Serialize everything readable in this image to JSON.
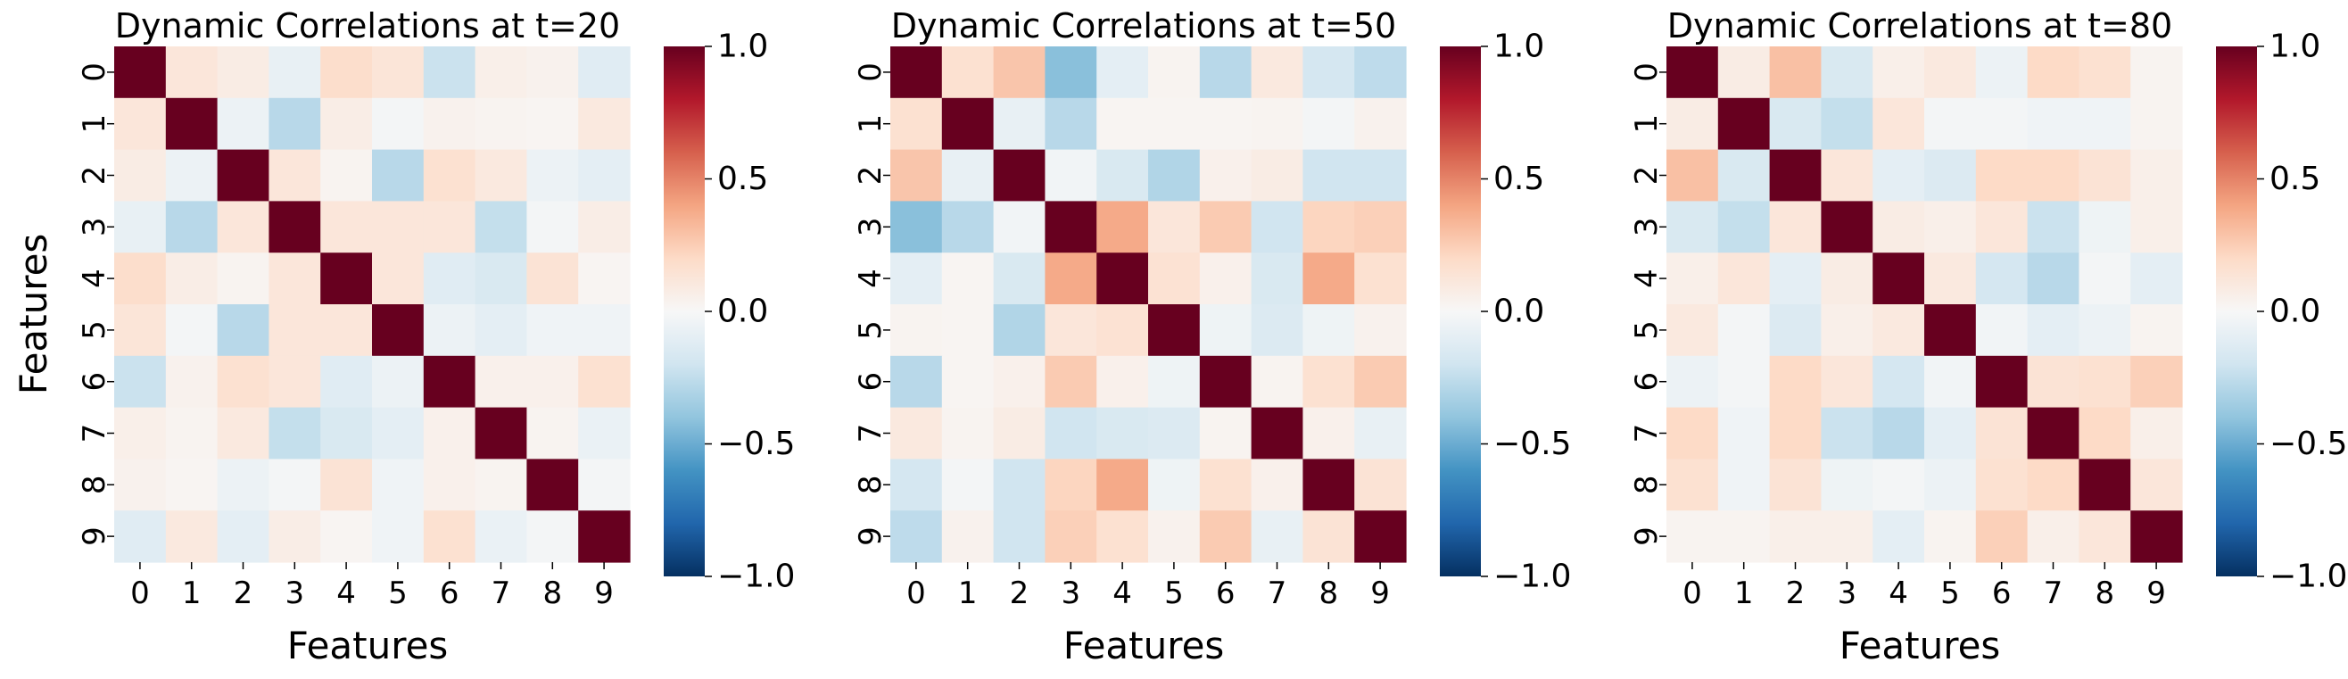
{
  "chart_data": [
    {
      "type": "heatmap",
      "title": "Dynamic Correlations at t=20",
      "xlabel": "Features",
      "ylabel": "Features",
      "x_categories": [
        "0",
        "1",
        "2",
        "3",
        "4",
        "5",
        "6",
        "7",
        "8",
        "9"
      ],
      "y_categories": [
        "0",
        "1",
        "2",
        "3",
        "4",
        "5",
        "6",
        "7",
        "8",
        "9"
      ],
      "values": [
        [
          1.0,
          0.12,
          0.08,
          -0.08,
          0.18,
          0.13,
          -0.22,
          0.06,
          0.04,
          -0.12
        ],
        [
          0.12,
          1.0,
          -0.06,
          -0.28,
          0.07,
          -0.02,
          0.04,
          0.03,
          0.02,
          0.1
        ],
        [
          0.08,
          -0.06,
          1.0,
          0.12,
          0.03,
          -0.28,
          0.16,
          0.1,
          -0.06,
          -0.1
        ],
        [
          -0.08,
          -0.28,
          0.12,
          1.0,
          0.12,
          0.12,
          0.12,
          -0.24,
          -0.02,
          0.07
        ],
        [
          0.18,
          0.07,
          0.03,
          0.12,
          1.0,
          0.12,
          -0.12,
          -0.16,
          0.14,
          0.02
        ],
        [
          0.13,
          -0.02,
          -0.28,
          0.12,
          0.12,
          1.0,
          -0.06,
          -0.1,
          -0.04,
          -0.04
        ],
        [
          -0.22,
          0.04,
          0.16,
          0.12,
          -0.12,
          -0.06,
          1.0,
          0.05,
          0.05,
          0.16
        ],
        [
          0.06,
          0.03,
          0.1,
          -0.24,
          -0.16,
          -0.1,
          0.05,
          1.0,
          0.03,
          -0.07
        ],
        [
          0.04,
          0.02,
          -0.06,
          -0.02,
          0.14,
          -0.04,
          0.05,
          0.03,
          1.0,
          -0.02
        ],
        [
          -0.12,
          0.1,
          -0.1,
          0.07,
          0.02,
          -0.04,
          0.16,
          -0.07,
          -0.02,
          1.0
        ]
      ],
      "vmin": -1.0,
      "vmax": 1.0,
      "colormap": "RdBu_r",
      "colorbar_ticks": [
        "1.0",
        "0.5",
        "0.0",
        "−0.5",
        "−1.0"
      ],
      "colorbar_tick_values": [
        1.0,
        0.5,
        0.0,
        -0.5,
        -1.0
      ]
    },
    {
      "type": "heatmap",
      "title": "Dynamic Correlations at t=50",
      "xlabel": "Features",
      "ylabel": "",
      "x_categories": [
        "0",
        "1",
        "2",
        "3",
        "4",
        "5",
        "6",
        "7",
        "8",
        "9"
      ],
      "y_categories": [
        "0",
        "1",
        "2",
        "3",
        "4",
        "5",
        "6",
        "7",
        "8",
        "9"
      ],
      "values": [
        [
          1.0,
          0.16,
          0.28,
          -0.42,
          -0.1,
          0.03,
          -0.28,
          0.1,
          -0.18,
          -0.26
        ],
        [
          0.16,
          1.0,
          -0.08,
          -0.28,
          0.02,
          0.02,
          0.02,
          0.03,
          -0.02,
          0.04
        ],
        [
          0.28,
          -0.08,
          1.0,
          -0.03,
          -0.16,
          -0.3,
          0.05,
          0.08,
          -0.2,
          -0.2
        ],
        [
          -0.42,
          -0.28,
          -0.03,
          1.0,
          0.38,
          0.12,
          0.26,
          -0.2,
          0.22,
          0.24
        ],
        [
          -0.1,
          0.02,
          -0.16,
          0.38,
          1.0,
          0.15,
          0.05,
          -0.16,
          0.38,
          0.16
        ],
        [
          0.03,
          0.02,
          -0.3,
          0.12,
          0.15,
          1.0,
          -0.05,
          -0.14,
          -0.05,
          0.04
        ],
        [
          -0.28,
          0.02,
          0.05,
          0.26,
          0.05,
          -0.05,
          1.0,
          0.03,
          0.16,
          0.26
        ],
        [
          0.1,
          0.03,
          0.08,
          -0.2,
          -0.16,
          -0.14,
          0.03,
          1.0,
          0.05,
          -0.08
        ],
        [
          -0.18,
          -0.02,
          -0.2,
          0.22,
          0.38,
          -0.05,
          0.16,
          0.05,
          1.0,
          0.14
        ],
        [
          -0.26,
          0.04,
          -0.2,
          0.24,
          0.16,
          0.04,
          0.26,
          -0.08,
          0.14,
          1.0
        ]
      ],
      "vmin": -1.0,
      "vmax": 1.0,
      "colormap": "RdBu_r",
      "colorbar_ticks": [
        "1.0",
        "0.5",
        "0.0",
        "−0.5",
        "−1.0"
      ],
      "colorbar_tick_values": [
        1.0,
        0.5,
        0.0,
        -0.5,
        -1.0
      ]
    },
    {
      "type": "heatmap",
      "title": "Dynamic Correlations at t=80",
      "xlabel": "Features",
      "ylabel": "",
      "x_categories": [
        "0",
        "1",
        "2",
        "3",
        "4",
        "5",
        "6",
        "7",
        "8",
        "9"
      ],
      "y_categories": [
        "0",
        "1",
        "2",
        "3",
        "4",
        "5",
        "6",
        "7",
        "8",
        "9"
      ],
      "values": [
        [
          1.0,
          0.08,
          0.3,
          -0.16,
          0.06,
          0.1,
          -0.06,
          0.2,
          0.16,
          0.03
        ],
        [
          0.08,
          1.0,
          -0.16,
          -0.24,
          0.12,
          -0.02,
          -0.02,
          -0.04,
          -0.04,
          0.03
        ],
        [
          0.3,
          -0.16,
          1.0,
          0.12,
          -0.1,
          -0.14,
          0.2,
          0.2,
          0.14,
          0.06
        ],
        [
          -0.16,
          -0.24,
          0.12,
          1.0,
          0.08,
          0.06,
          0.12,
          -0.22,
          -0.05,
          0.06
        ],
        [
          0.06,
          0.12,
          -0.1,
          0.08,
          1.0,
          0.1,
          -0.18,
          -0.28,
          -0.02,
          -0.1
        ],
        [
          0.1,
          -0.02,
          -0.14,
          0.06,
          0.1,
          1.0,
          -0.03,
          -0.1,
          -0.06,
          0.03
        ],
        [
          -0.06,
          -0.02,
          0.2,
          0.12,
          -0.18,
          -0.03,
          1.0,
          0.14,
          0.16,
          0.24
        ],
        [
          0.2,
          -0.04,
          0.2,
          -0.22,
          -0.28,
          -0.1,
          0.14,
          1.0,
          0.2,
          0.06
        ],
        [
          0.16,
          -0.04,
          0.14,
          -0.05,
          -0.02,
          -0.06,
          0.16,
          0.2,
          1.0,
          0.12
        ],
        [
          0.03,
          0.03,
          0.06,
          0.06,
          -0.1,
          0.03,
          0.24,
          0.06,
          0.12,
          1.0
        ]
      ],
      "vmin": -1.0,
      "vmax": 1.0,
      "colormap": "RdBu_r",
      "colorbar_ticks": [
        "1.0",
        "0.5",
        "0.0",
        "−0.5",
        "−1.0"
      ],
      "colorbar_tick_values": [
        1.0,
        0.5,
        0.0,
        -0.5,
        -1.0
      ]
    }
  ]
}
